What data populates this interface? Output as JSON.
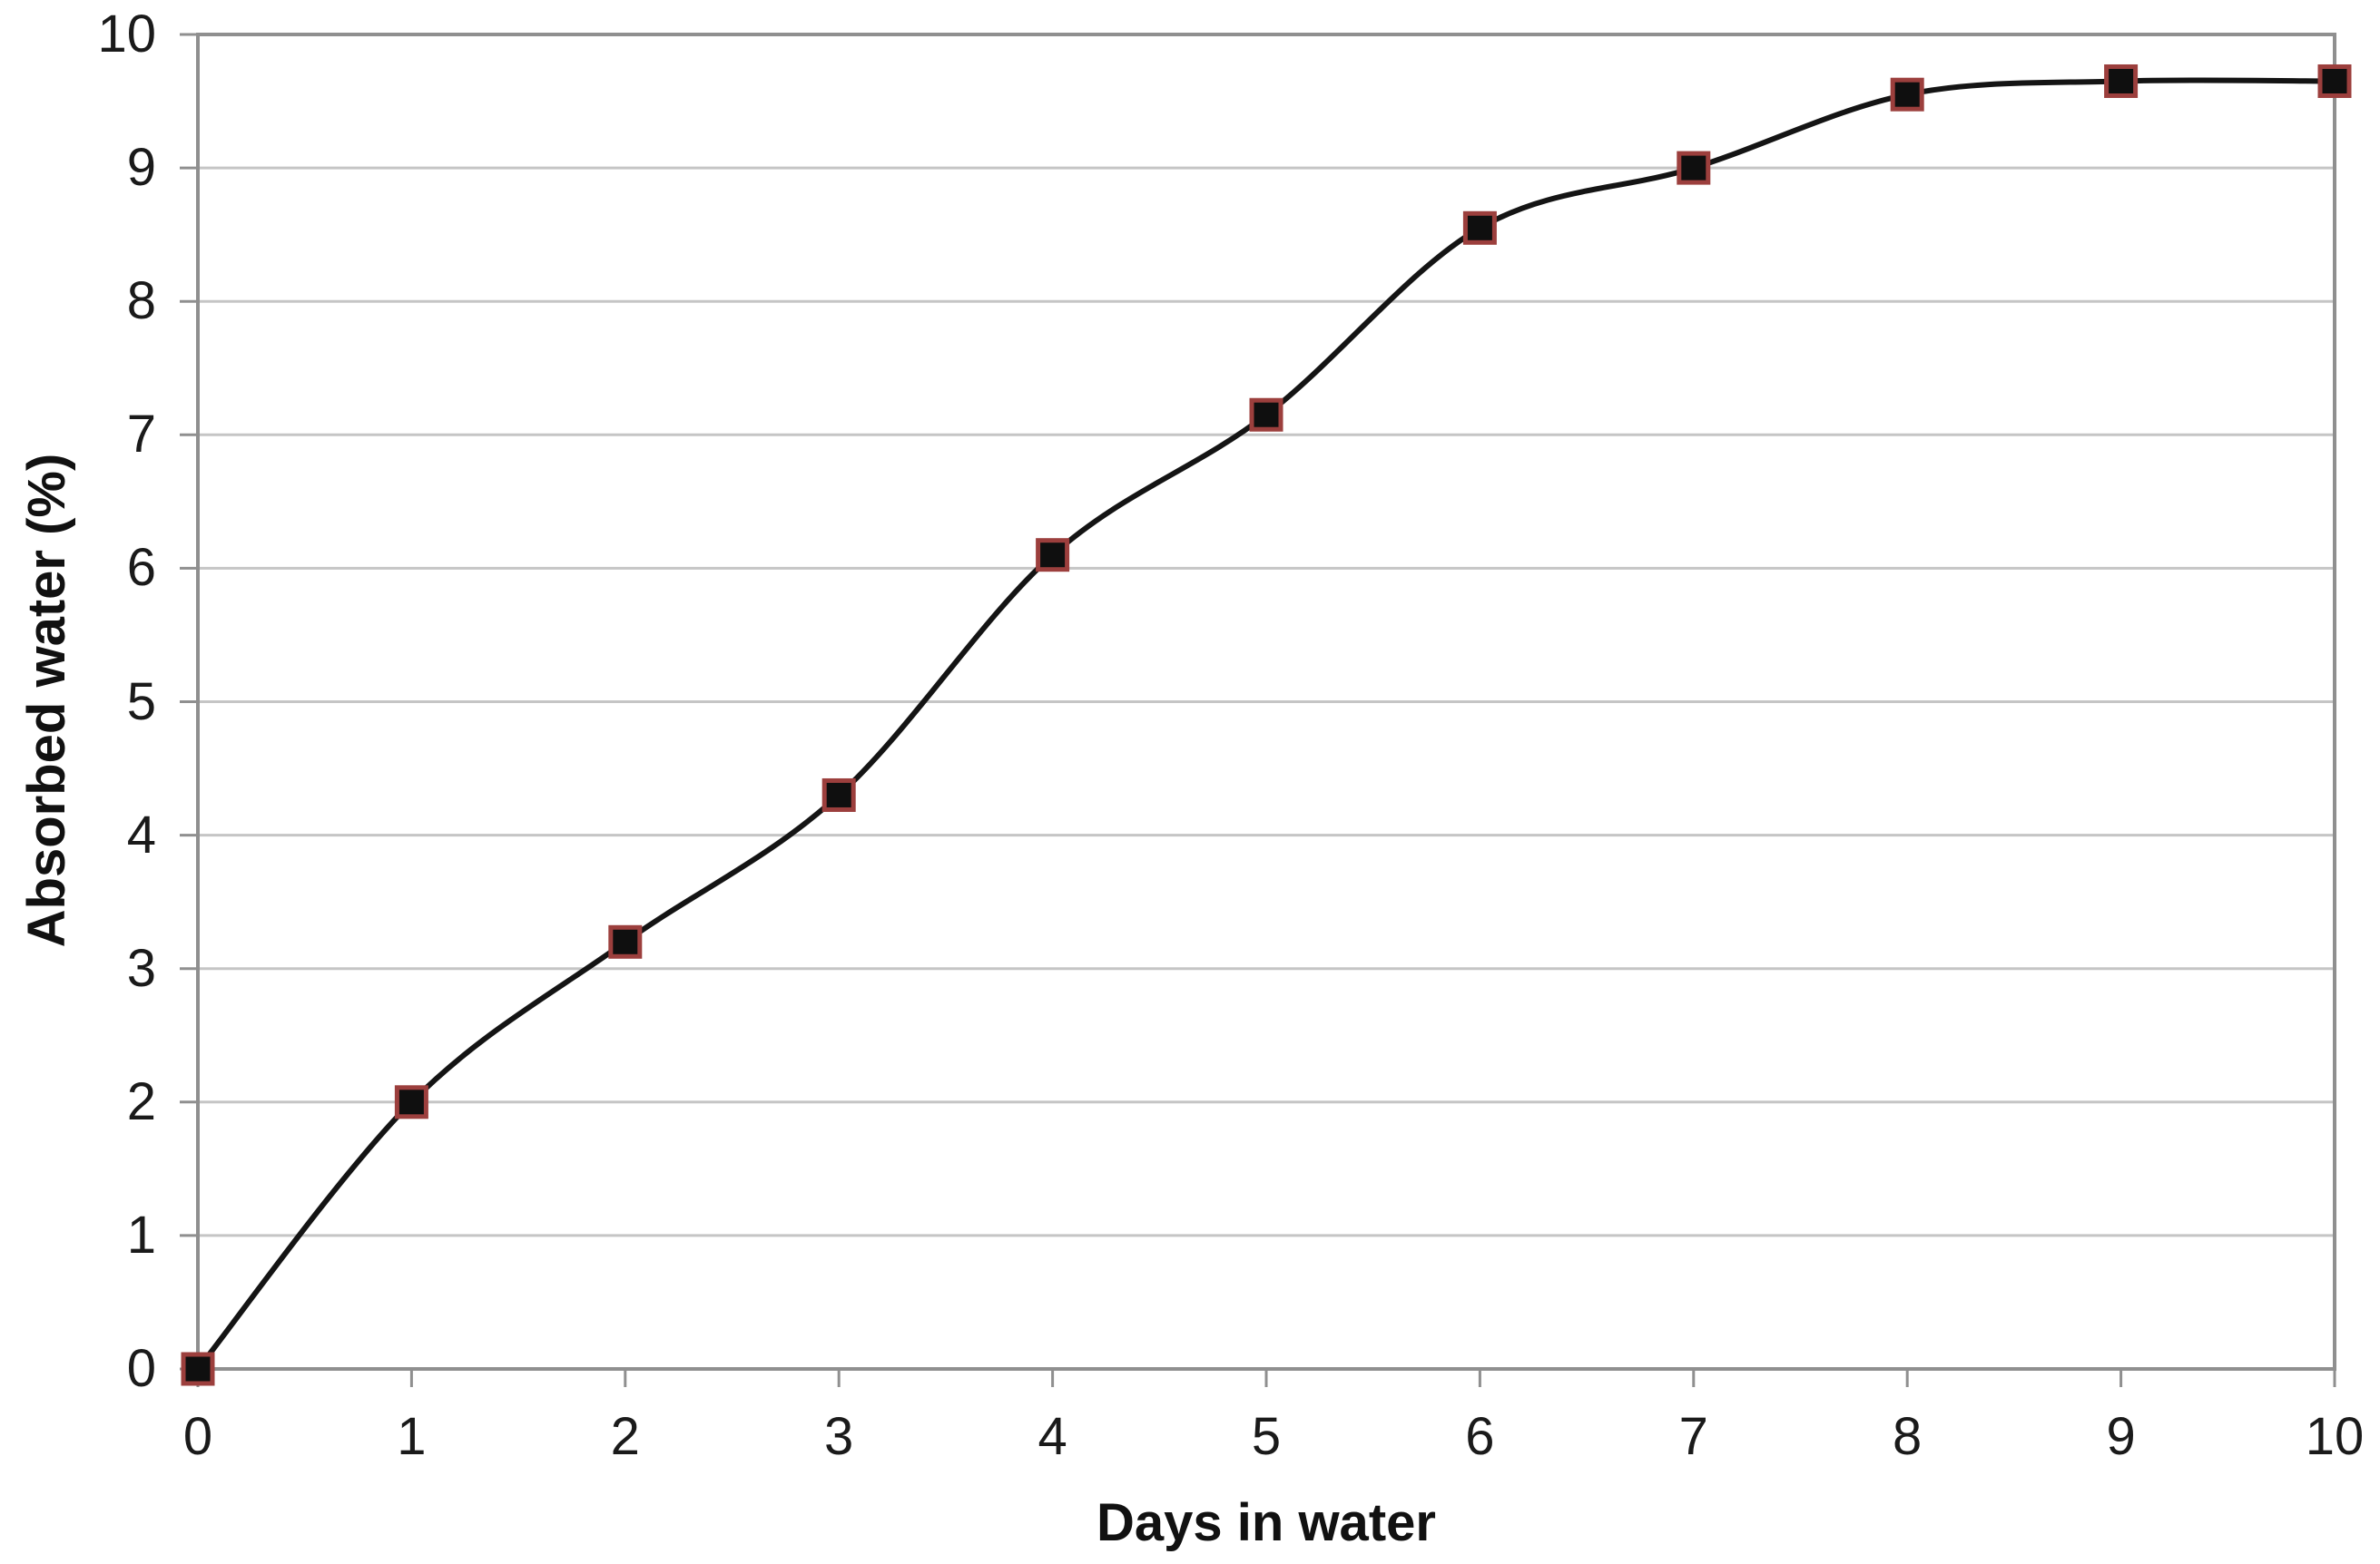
{
  "chart_data": {
    "type": "line",
    "title": "",
    "xlabel": "Days in water",
    "ylabel": "Absorbed water (%)",
    "series": [
      {
        "name": "Absorbed water",
        "x": [
          0,
          1,
          2,
          3,
          4,
          5,
          6,
          7,
          8,
          9,
          10
        ],
        "values": [
          0,
          2.0,
          3.2,
          4.3,
          6.1,
          7.15,
          8.55,
          9.0,
          9.55,
          9.65,
          9.65
        ]
      }
    ],
    "x_ticks": [
      0,
      1,
      2,
      3,
      4,
      5,
      6,
      7,
      8,
      9,
      10
    ],
    "y_ticks": [
      0,
      1,
      2,
      3,
      4,
      5,
      6,
      7,
      8,
      9,
      10
    ],
    "x_tick_labels": [
      "0",
      "1",
      "2",
      "3",
      "4",
      "5",
      "6",
      "7",
      "8",
      "9",
      "10"
    ],
    "y_tick_labels": [
      "0",
      "1",
      "2",
      "3",
      "4",
      "5",
      "6",
      "7",
      "8",
      "9",
      "10"
    ],
    "xlim": [
      0,
      10
    ],
    "ylim": [
      0,
      10
    ],
    "grid": "horizontal",
    "legend": "none",
    "line_style": "smooth",
    "marker": "square",
    "colors": {
      "line": "#141414",
      "marker_fill": "#0f0f0f",
      "marker_border": "#9c3f3d",
      "gridline": "#c5c5c5",
      "axis": "#8f8f8f",
      "text": "#1a1a1a"
    }
  }
}
